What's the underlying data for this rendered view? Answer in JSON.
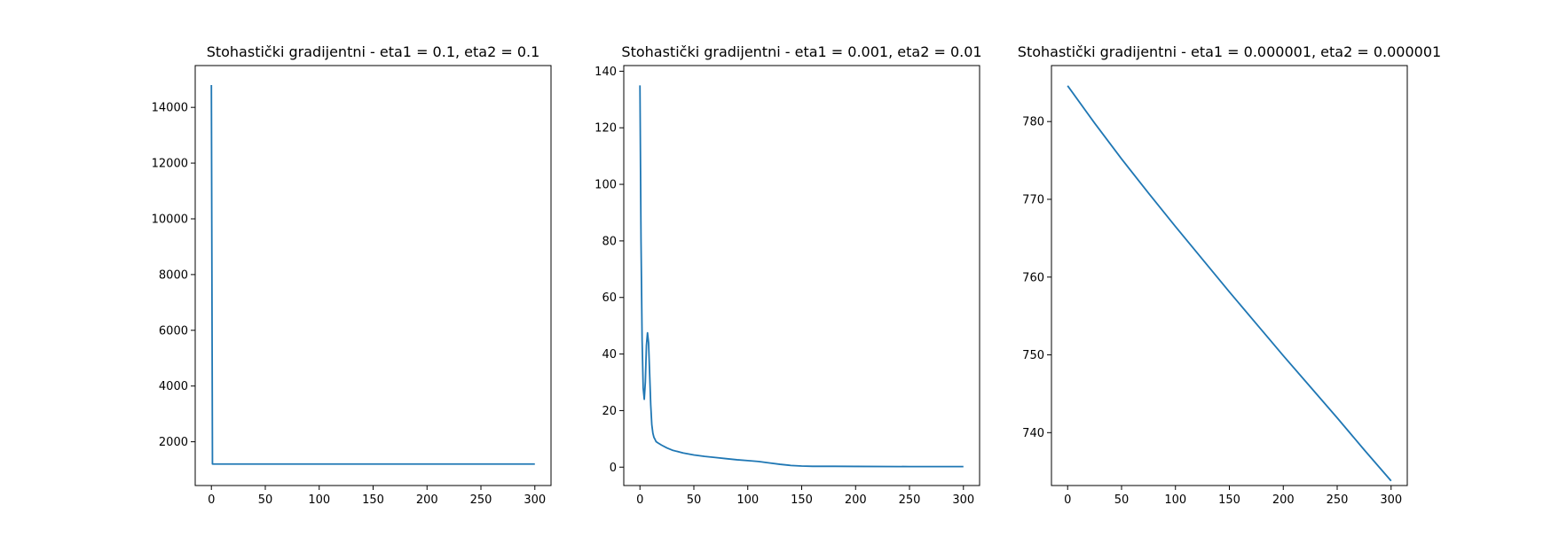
{
  "chart_data": [
    {
      "type": "line",
      "title": "Stohastički gradijentni - eta1 = 0.1, eta2 = 0.1",
      "xlabel": "",
      "ylabel": "",
      "xlim": [
        -15,
        315
      ],
      "ylim": [
        430,
        15500
      ],
      "xticks": [
        "0",
        "50",
        "100",
        "150",
        "200",
        "250",
        "300"
      ],
      "yticks": [
        "2000",
        "4000",
        "6000",
        "8000",
        "10000",
        "12000",
        "14000"
      ],
      "grid": false,
      "color": "#1f77b4",
      "series": [
        {
          "x": [
            0,
            1,
            2,
            10,
            50,
            100,
            150,
            200,
            250,
            300
          ],
          "y": [
            14800,
            1200,
            1200,
            1200,
            1200,
            1200,
            1200,
            1200,
            1200,
            1200
          ]
        }
      ]
    },
    {
      "type": "line",
      "title": "Stohastički gradijentni - eta1 = 0.001, eta2 = 0.01",
      "xlabel": "",
      "ylabel": "",
      "xlim": [
        -15,
        315
      ],
      "ylim": [
        -6.5,
        142
      ],
      "xticks": [
        "0",
        "50",
        "100",
        "150",
        "200",
        "250",
        "300"
      ],
      "yticks": [
        "0",
        "20",
        "40",
        "60",
        "80",
        "100",
        "120",
        "140"
      ],
      "grid": false,
      "color": "#1f77b4",
      "series": [
        {
          "x": [
            0,
            1,
            2,
            3,
            4,
            5,
            6,
            7,
            8,
            9,
            10,
            11,
            12,
            13,
            14,
            15,
            17,
            20,
            25,
            30,
            40,
            50,
            60,
            70,
            80,
            90,
            100,
            110,
            120,
            130,
            140,
            150,
            160,
            180,
            200,
            250,
            300
          ],
          "y": [
            135,
            80,
            45,
            28,
            24,
            30,
            43,
            47.5,
            44,
            33,
            22,
            15,
            12,
            10.5,
            9.8,
            9,
            8.5,
            7.8,
            6.8,
            6,
            5,
            4.3,
            3.8,
            3.4,
            3,
            2.6,
            2.3,
            2,
            1.5,
            1,
            0.6,
            0.4,
            0.3,
            0.3,
            0.25,
            0.2,
            0.2
          ]
        }
      ]
    },
    {
      "type": "line",
      "title": "Stohastički gradijentni - eta1 = 0.000001, eta2 = 0.000001",
      "xlabel": "",
      "ylabel": "",
      "xlim": [
        -15,
        315
      ],
      "ylim": [
        733.2,
        787.2
      ],
      "xticks": [
        "0",
        "50",
        "100",
        "150",
        "200",
        "250",
        "300"
      ],
      "yticks": [
        "740",
        "750",
        "760",
        "770",
        "780"
      ],
      "grid": false,
      "color": "#1f77b4",
      "series": [
        {
          "x": [
            0,
            25,
            50,
            75,
            100,
            125,
            150,
            175,
            200,
            225,
            250,
            275,
            300
          ],
          "y": [
            784.6,
            779.8,
            775.2,
            770.8,
            766.5,
            762.3,
            758.1,
            754,
            749.9,
            745.9,
            741.9,
            737.8,
            733.8
          ]
        }
      ]
    }
  ]
}
